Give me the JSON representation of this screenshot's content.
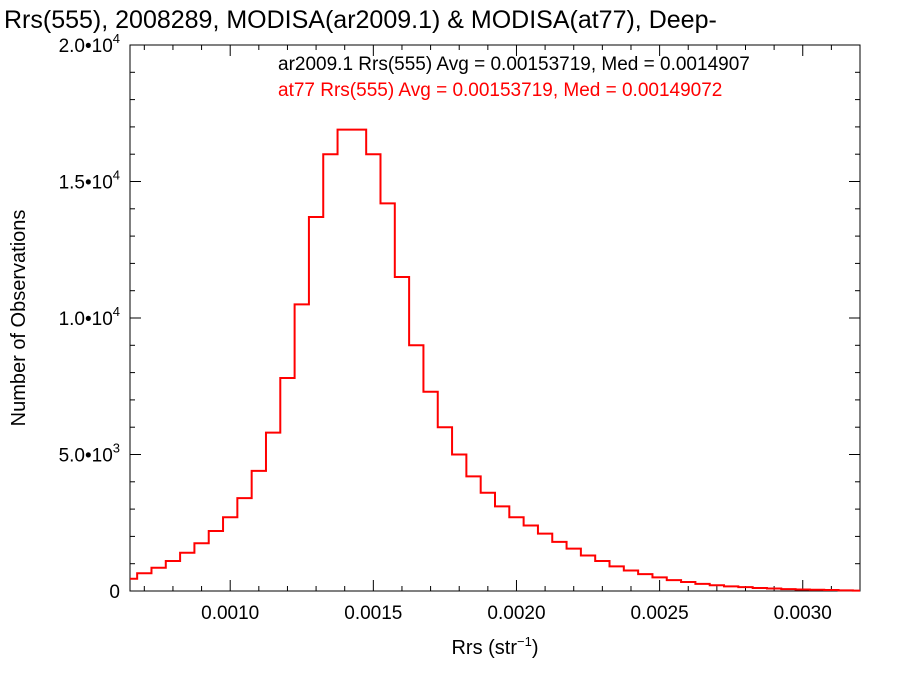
{
  "chart_data": {
    "type": "histogram",
    "title": "Rrs(555), 2008289, MODISA(ar2009.1) & MODISA(at77), Deep-",
    "xlabel": {
      "base": "Rrs (str",
      "sup": "−1",
      "tail": ")"
    },
    "ylabel": "Number of Observations",
    "xlim": [
      0.00065,
      0.0032
    ],
    "ylim": [
      0,
      20000
    ],
    "x_ticks": [
      {
        "value": 0.001,
        "label": "0.0010"
      },
      {
        "value": 0.0015,
        "label": "0.0015"
      },
      {
        "value": 0.002,
        "label": "0.0020"
      },
      {
        "value": 0.0025,
        "label": "0.0025"
      },
      {
        "value": 0.003,
        "label": "0.0030"
      }
    ],
    "y_ticks": [
      {
        "value": 0,
        "mant": "0",
        "exp": ""
      },
      {
        "value": 5000,
        "mant": "5.0•10",
        "exp": "3"
      },
      {
        "value": 10000,
        "mant": "1.0•10",
        "exp": "4"
      },
      {
        "value": 15000,
        "mant": "1.5•10",
        "exp": "4"
      },
      {
        "value": 20000,
        "mant": "2.0•10",
        "exp": "4"
      }
    ],
    "annotations": [
      {
        "text": "ar2009.1 Rrs(555) Avg = 0.00153719, Med = 0.0014907",
        "color": "#000000"
      },
      {
        "text": "at77 Rrs(555) Avg = 0.00153719, Med = 0.00149072",
        "color": "#ff0000"
      }
    ],
    "series_color": "#ff0000",
    "series": [
      {
        "x": [
          0.00065,
          0.0007,
          0.00075,
          0.0008,
          0.00085,
          0.0009,
          0.00095,
          0.001,
          0.00105,
          0.0011,
          0.00115,
          0.0012,
          0.00125,
          0.0013,
          0.00135,
          0.0014,
          0.00145,
          0.0015,
          0.00155,
          0.0016,
          0.00165,
          0.0017,
          0.00175,
          0.0018,
          0.00185,
          0.0019,
          0.00195,
          0.002,
          0.00205,
          0.0021,
          0.00215,
          0.0022,
          0.00225,
          0.0023,
          0.00235,
          0.0024,
          0.00245,
          0.0025,
          0.00255,
          0.0026,
          0.00265,
          0.0027,
          0.00275,
          0.0028,
          0.00285,
          0.0029,
          0.00295,
          0.003,
          0.00305,
          0.0031,
          0.00315,
          0.0032
        ],
        "y": [
          450,
          650,
          850,
          1100,
          1400,
          1750,
          2200,
          2700,
          3400,
          4400,
          5800,
          7800,
          10500,
          13700,
          16000,
          16900,
          16900,
          16000,
          14200,
          11500,
          9000,
          7300,
          6000,
          5000,
          4200,
          3600,
          3100,
          2700,
          2400,
          2100,
          1800,
          1550,
          1300,
          1100,
          900,
          750,
          620,
          500,
          400,
          330,
          260,
          210,
          170,
          140,
          110,
          90,
          70,
          55,
          45,
          35,
          25,
          15
        ]
      }
    ]
  }
}
